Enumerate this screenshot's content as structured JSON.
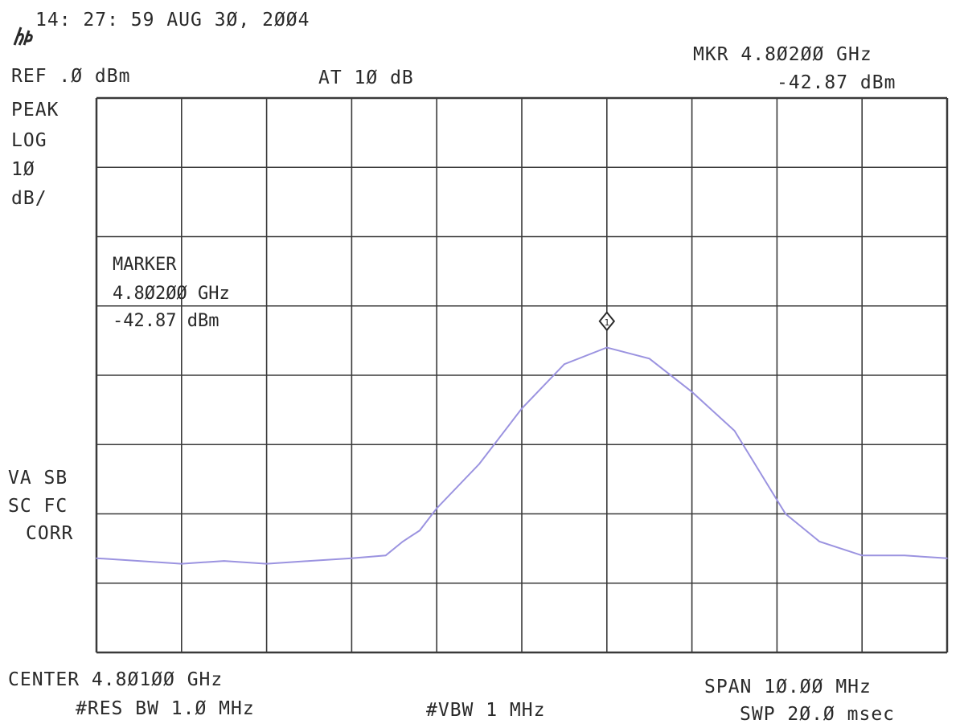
{
  "header": {
    "timestamp": "14: 27: 59 AUG 3Ø, 2ØØ4",
    "ref_level": "REF .Ø dBm",
    "attenuation": "AT 1Ø dB",
    "marker_freq": "MKR 4.8Ø2ØØ GHz",
    "marker_level": "-42.87 dBm"
  },
  "left_labels": {
    "detector": "PEAK",
    "scale_type": "LOG",
    "scale_value": "1Ø",
    "scale_unit": "dB/",
    "va_sb": "VA SB",
    "sc_fc": "SC FC",
    "corr": "CORR"
  },
  "marker_box": {
    "title": "MARKER",
    "freq": "4.8Ø2ØØ GHz",
    "level": "-42.87 dBm"
  },
  "footer": {
    "center": "CENTER 4.8Ø1ØØ GHz",
    "res_bw": "#RES BW 1.Ø MHz",
    "vbw": "#VBW 1 MHz",
    "span": "SPAN 1Ø.ØØ MHz",
    "sweep": "SWP 2Ø.Ø msec"
  },
  "colors": {
    "trace": "#9b93e0",
    "grid": "#3a3a3a",
    "text": "#2a2a2a"
  },
  "chart_data": {
    "type": "line",
    "x_unit": "GHz",
    "y_unit": "dBm",
    "xlim": [
      4.796,
      4.806
    ],
    "ylim": [
      -100,
      0
    ],
    "x_divisions": 10,
    "y_divisions": 8,
    "y_per_division_db": 10,
    "grid": true,
    "marker": {
      "x": 4.802,
      "y": -42.87,
      "label": "1"
    },
    "series": [
      {
        "x": [
          4.796,
          4.7965,
          4.797,
          4.7975,
          4.798,
          4.7985,
          4.799,
          4.7994,
          4.7996,
          4.7998,
          4.8,
          4.8005,
          4.801,
          4.8015,
          4.802,
          4.8025,
          4.803,
          4.8035,
          4.8037,
          4.8039,
          4.8041,
          4.8045,
          4.805,
          4.8055,
          4.806
        ],
        "y": [
          -83,
          -83.5,
          -84,
          -83.5,
          -84,
          -83.5,
          -83,
          -82.5,
          -80,
          -78,
          -74,
          -66,
          -56,
          -48,
          -45,
          -47,
          -53,
          -60,
          -65,
          -70,
          -75,
          -80,
          -82.5,
          -82.5,
          -83
        ]
      }
    ]
  }
}
